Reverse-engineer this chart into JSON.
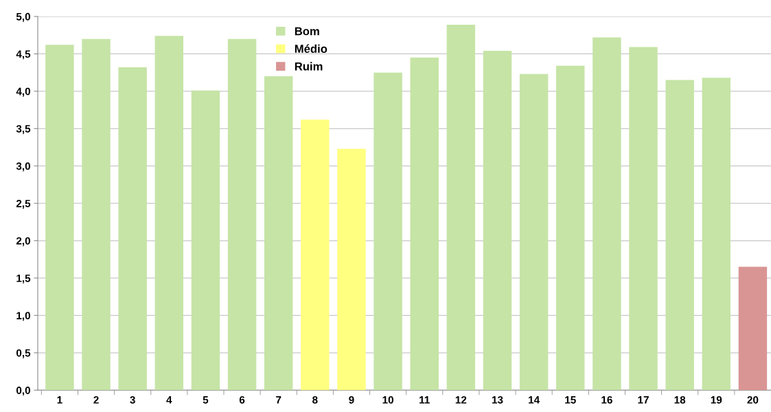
{
  "chart_data": {
    "type": "bar",
    "stacked": true,
    "categories": [
      "1",
      "2",
      "3",
      "4",
      "5",
      "6",
      "7",
      "8",
      "9",
      "10",
      "11",
      "12",
      "13",
      "14",
      "15",
      "16",
      "17",
      "18",
      "19",
      "20"
    ],
    "series": [
      {
        "name": "Bom",
        "color": "#c6e4a6",
        "values": [
          4.62,
          4.7,
          4.32,
          4.74,
          4.01,
          4.7,
          4.2,
          null,
          null,
          4.25,
          4.45,
          4.89,
          4.54,
          4.23,
          4.34,
          4.72,
          4.59,
          4.15,
          4.18,
          null
        ]
      },
      {
        "name": "Médio",
        "color": "#ffff80",
        "values": [
          null,
          null,
          null,
          null,
          null,
          null,
          null,
          3.62,
          3.23,
          null,
          null,
          null,
          null,
          null,
          null,
          null,
          null,
          null,
          null,
          null
        ]
      },
      {
        "name": "Ruim",
        "color": "#d99594",
        "values": [
          null,
          null,
          null,
          null,
          null,
          null,
          null,
          null,
          null,
          null,
          null,
          null,
          null,
          null,
          null,
          null,
          null,
          null,
          null,
          1.65
        ]
      }
    ],
    "ylim": [
      0,
      5
    ],
    "yticks": [
      {
        "value": 0,
        "label": "0,0"
      },
      {
        "value": 0.5,
        "label": "0,5"
      },
      {
        "value": 1,
        "label": "1,0"
      },
      {
        "value": 1.5,
        "label": "1,5"
      },
      {
        "value": 2,
        "label": "2,0"
      },
      {
        "value": 2.5,
        "label": "2,5"
      },
      {
        "value": 3,
        "label": "3,0"
      },
      {
        "value": 3.5,
        "label": "3,5"
      },
      {
        "value": 4,
        "label": "4,0"
      },
      {
        "value": 4.5,
        "label": "4,5"
      },
      {
        "value": 5,
        "label": "5,0"
      }
    ],
    "grid": "y",
    "legend": "top"
  }
}
